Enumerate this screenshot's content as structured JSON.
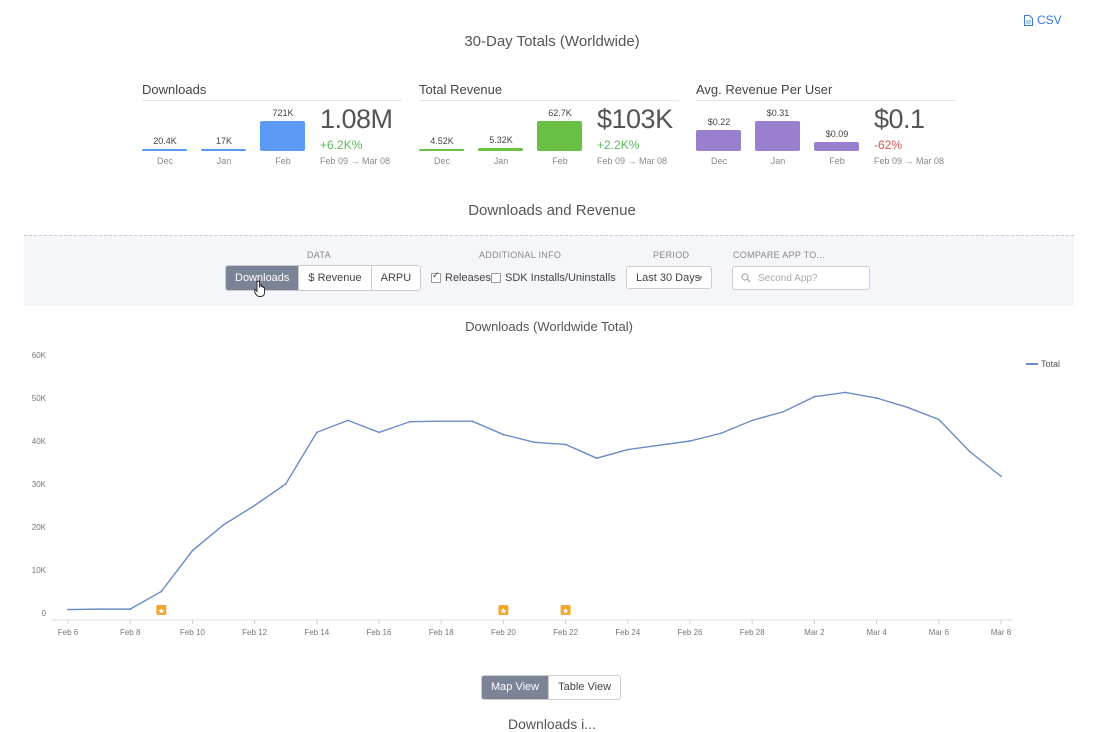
{
  "csv_label": "CSV",
  "totals_title": "30-Day Totals (Worldwide)",
  "kpis": {
    "downloads": {
      "title": "Downloads",
      "bars": [
        {
          "label": "Dec",
          "value_text": "20.4K",
          "value": 20.4
        },
        {
          "label": "Jan",
          "value_text": "17K",
          "value": 17
        },
        {
          "label": "Feb",
          "value_text": "721K",
          "value": 721
        }
      ],
      "total": "1.08M",
      "change": "+6.2K%",
      "range": "Feb 09 → Mar 08",
      "color": "#5b9bf5"
    },
    "revenue": {
      "title": "Total Revenue",
      "bars": [
        {
          "label": "Dec",
          "value_text": "4.52K",
          "value": 4.52
        },
        {
          "label": "Jan",
          "value_text": "5.32K",
          "value": 5.32
        },
        {
          "label": "Feb",
          "value_text": "62.7K",
          "value": 62.7
        }
      ],
      "total": "$103K",
      "change": "+2.2K%",
      "range": "Feb 09 → Mar 08",
      "color": "#6abf45"
    },
    "arpu": {
      "title": "Avg. Revenue Per User",
      "bars": [
        {
          "label": "Dec",
          "value_text": "$0.22",
          "value": 0.22
        },
        {
          "label": "Jan",
          "value_text": "$0.31",
          "value": 0.31
        },
        {
          "label": "Feb",
          "value_text": "$0.09",
          "value": 0.09
        }
      ],
      "total": "$0.1",
      "change": "-62%",
      "range": "Feb 09 → Mar 08",
      "color": "#9b7fcf"
    }
  },
  "section_title": "Downloads and Revenue",
  "controls": {
    "data_label": "DATA",
    "data_options": [
      "Downloads",
      "$ Revenue",
      "ARPU"
    ],
    "data_active": "Downloads",
    "additional_label": "ADDITIONAL INFO",
    "releases_label": "Releases",
    "releases_checked": true,
    "sdk_label": "SDK Installs/Uninstalls",
    "sdk_checked": false,
    "period_label": "PERIOD",
    "period_value": "Last 30 Days",
    "compare_label": "COMPARE APP TO...",
    "compare_placeholder": "Second App?"
  },
  "chart_title": "Downloads (Worldwide Total)",
  "chart_data": {
    "type": "line",
    "title": "Downloads (Worldwide Total)",
    "x": [
      "Feb 6",
      "Feb 7",
      "Feb 8",
      "Feb 9",
      "Feb 10",
      "Feb 11",
      "Feb 12",
      "Feb 13",
      "Feb 14",
      "Feb 15",
      "Feb 16",
      "Feb 17",
      "Feb 18",
      "Feb 19",
      "Feb 20",
      "Feb 21",
      "Feb 22",
      "Feb 23",
      "Feb 24",
      "Feb 25",
      "Feb 26",
      "Feb 27",
      "Feb 28",
      "Mar 1",
      "Mar 2",
      "Mar 3",
      "Mar 4",
      "Mar 5",
      "Mar 6",
      "Mar 7",
      "Mar 8"
    ],
    "series": [
      {
        "name": "Total",
        "values": [
          800,
          900,
          900,
          5000,
          14500,
          20500,
          25000,
          30000,
          42000,
          44800,
          42000,
          44500,
          44600,
          44600,
          41500,
          39700,
          39200,
          36000,
          38000,
          39000,
          40000,
          41800,
          44800,
          46800,
          50300,
          51300,
          50000,
          47800,
          45000,
          37500,
          31800
        ]
      }
    ],
    "x_ticks": [
      "Feb 6",
      "Feb 8",
      "Feb 10",
      "Feb 12",
      "Feb 14",
      "Feb 16",
      "Feb 18",
      "Feb 20",
      "Feb 22",
      "Feb 24",
      "Feb 26",
      "Feb 28",
      "Mar 2",
      "Mar 4",
      "Mar 6",
      "Mar 8"
    ],
    "y_ticks": [
      "0",
      "10K",
      "20K",
      "30K",
      "40K",
      "50K",
      "60K"
    ],
    "ylim": [
      0,
      60000
    ],
    "legend": "top-right",
    "release_markers": [
      "Feb 9",
      "Feb 20",
      "Feb 22"
    ],
    "line_color": "#6b8cc7",
    "marker_color": "#f0a830"
  },
  "views": {
    "options": [
      "Map View",
      "Table View"
    ],
    "active": "Map View"
  },
  "cut_off_heading": "Downloads i..."
}
